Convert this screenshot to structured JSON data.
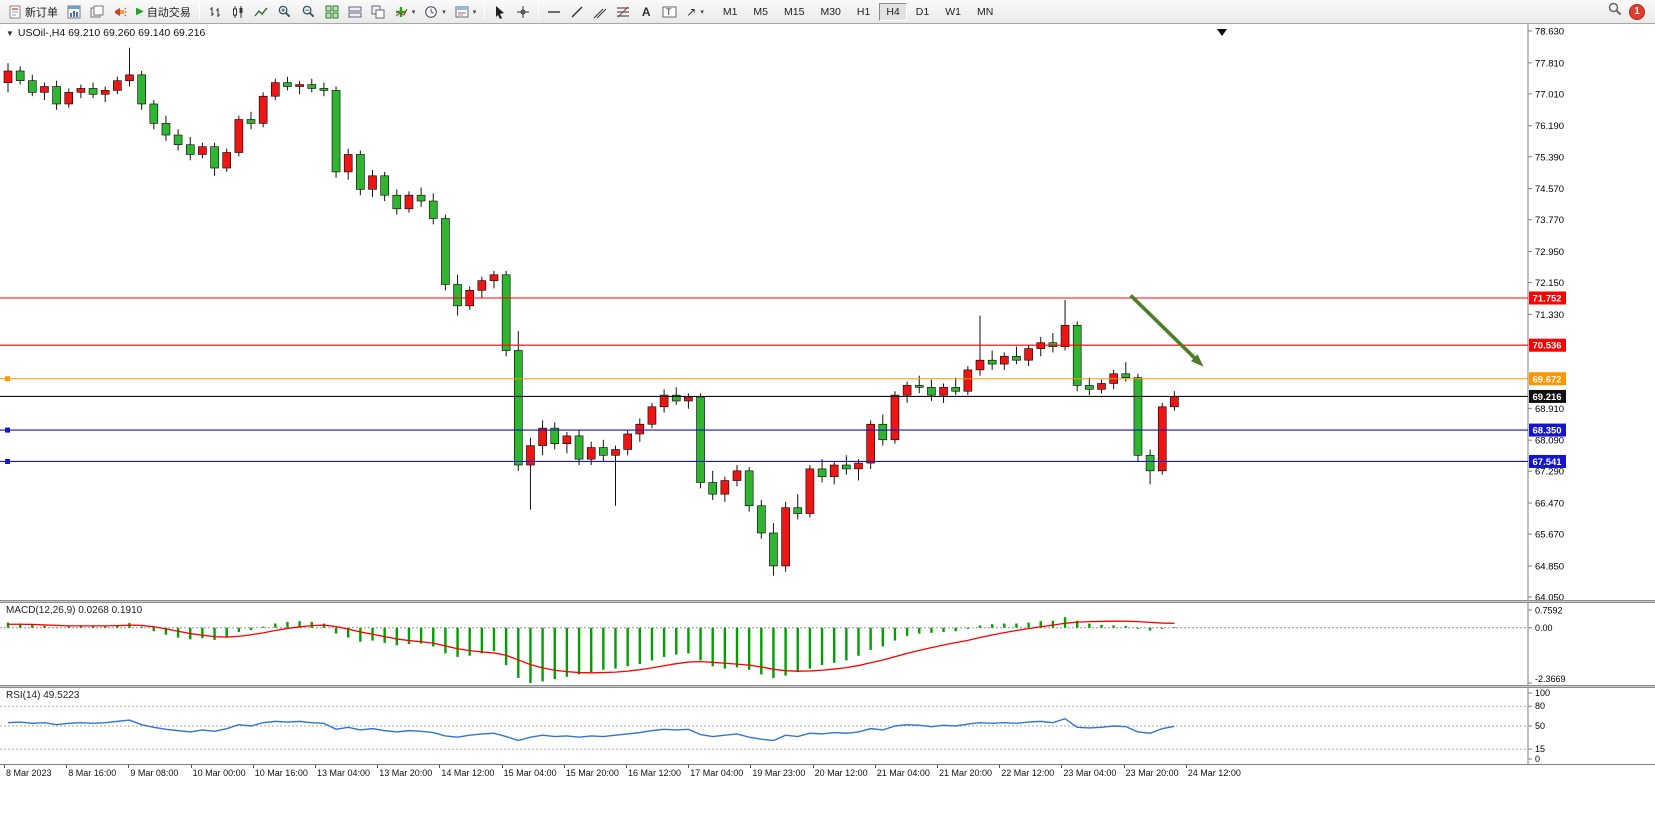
{
  "toolbar": {
    "new_order_label": "新订单",
    "autotrading_label": "自动交易",
    "timeframes": [
      "M1",
      "M5",
      "M15",
      "M30",
      "H1",
      "H4",
      "D1",
      "W1",
      "MN"
    ],
    "active_timeframe": "H4",
    "notification_count": "1",
    "text_tool_label": "A",
    "arrows_tool_glyph": "↗"
  },
  "chart_header": {
    "title": "USOil-,H4  69.210 69.260 69.140 69.216"
  },
  "macd_panel": {
    "label": "MACD(12,26,9) 0.0268 0.1910"
  },
  "rsi_panel": {
    "label": "RSI(14) 49.5223"
  },
  "chart_data": {
    "type": "candlestick",
    "symbol": "USOil-",
    "period": "H4",
    "ohlc_display": {
      "open": 69.21,
      "high": 69.26,
      "low": 69.14,
      "close": 69.216
    },
    "ylim": [
      64.05,
      78.63
    ],
    "colors": {
      "up": "#EE1515",
      "down": "#2FB52F",
      "wick": "#111111",
      "body_border": "#000000",
      "macd_hist": "#00A000",
      "macd_signal": "#FF0000",
      "rsi_line": "#2E75D4",
      "axis_line": "#808080",
      "arrow": "#4D7E2A",
      "bid": "#111111"
    },
    "price_axis": {
      "labels": [
        "78.630",
        "77.810",
        "77.010",
        "76.190",
        "75.390",
        "74.570",
        "73.770",
        "72.950",
        "72.150",
        "71.330",
        "68.910",
        "68.090",
        "67.290",
        "66.470",
        "65.670",
        "64.850",
        "64.050"
      ]
    },
    "hlines": [
      {
        "price": 71.752,
        "label": "71.752",
        "color": "#FF0000",
        "handle": false
      },
      {
        "price": 70.536,
        "label": "70.536",
        "color": "#FF0000",
        "handle": false
      },
      {
        "price": 69.672,
        "label": "69.672",
        "color": "#FF9500",
        "handle": true
      },
      {
        "price": 69.216,
        "label": "69.216",
        "color": "#111111",
        "handle": false
      },
      {
        "price": 68.35,
        "label": "68.350",
        "color": "#1414CC",
        "handle": true
      },
      {
        "price": 67.541,
        "label": "67.541",
        "color": "#1414CC",
        "handle": true
      }
    ],
    "arrow": {
      "from": {
        "index": 92.4,
        "price": 71.82
      },
      "to": {
        "index": 98.4,
        "price": 69.98
      }
    },
    "x_labels": [
      "8 Mar 2023",
      "8 Mar 16:00",
      "9 Mar 08:00",
      "10 Mar 00:00",
      "10 Mar 16:00",
      "13 Mar 04:00",
      "13 Mar 20:00",
      "14 Mar 12:00",
      "15 Mar 04:00",
      "15 Mar 20:00",
      "16 Mar 12:00",
      "17 Mar 04:00",
      "19 Mar 23:00",
      "20 Mar 12:00",
      "21 Mar 04:00",
      "21 Mar 20:00",
      "22 Mar 12:00",
      "23 Mar 04:00",
      "23 Mar 20:00",
      "24 Mar 12:00"
    ],
    "candles": [
      [
        77.3,
        77.8,
        77.05,
        77.6
      ],
      [
        77.6,
        77.72,
        77.25,
        77.35
      ],
      [
        77.35,
        77.5,
        76.95,
        77.05
      ],
      [
        77.05,
        77.3,
        76.85,
        77.2
      ],
      [
        77.2,
        77.35,
        76.6,
        76.75
      ],
      [
        76.75,
        77.15,
        76.65,
        77.05
      ],
      [
        77.05,
        77.25,
        76.9,
        77.15
      ],
      [
        77.15,
        77.3,
        76.9,
        77.0
      ],
      [
        77.0,
        77.2,
        76.8,
        77.1
      ],
      [
        77.1,
        77.45,
        77.0,
        77.35
      ],
      [
        77.35,
        78.2,
        77.2,
        77.5
      ],
      [
        77.5,
        77.6,
        76.6,
        76.75
      ],
      [
        76.75,
        76.85,
        76.1,
        76.25
      ],
      [
        76.25,
        76.45,
        75.8,
        75.95
      ],
      [
        75.95,
        76.1,
        75.55,
        75.7
      ],
      [
        75.7,
        75.9,
        75.3,
        75.45
      ],
      [
        75.45,
        75.75,
        75.35,
        75.65
      ],
      [
        75.65,
        75.75,
        74.9,
        75.1
      ],
      [
        75.1,
        75.6,
        75.0,
        75.5
      ],
      [
        75.5,
        76.45,
        75.4,
        76.35
      ],
      [
        76.35,
        76.55,
        76.1,
        76.25
      ],
      [
        76.25,
        77.05,
        76.15,
        76.95
      ],
      [
        76.95,
        77.4,
        76.85,
        77.3
      ],
      [
        77.3,
        77.45,
        77.1,
        77.2
      ],
      [
        77.2,
        77.35,
        77.0,
        77.25
      ],
      [
        77.25,
        77.4,
        77.05,
        77.15
      ],
      [
        77.15,
        77.3,
        76.95,
        77.1
      ],
      [
        77.1,
        77.2,
        74.85,
        75.0
      ],
      [
        75.0,
        75.6,
        74.8,
        75.45
      ],
      [
        75.45,
        75.55,
        74.4,
        74.55
      ],
      [
        74.55,
        75.05,
        74.35,
        74.9
      ],
      [
        74.9,
        75.0,
        74.25,
        74.4
      ],
      [
        74.4,
        74.55,
        73.9,
        74.05
      ],
      [
        74.05,
        74.5,
        73.95,
        74.4
      ],
      [
        74.4,
        74.6,
        74.1,
        74.25
      ],
      [
        74.25,
        74.45,
        73.65,
        73.8
      ],
      [
        73.8,
        73.9,
        71.95,
        72.1
      ],
      [
        72.1,
        72.35,
        71.3,
        71.55
      ],
      [
        71.55,
        72.05,
        71.45,
        71.95
      ],
      [
        71.95,
        72.3,
        71.75,
        72.2
      ],
      [
        72.2,
        72.45,
        72.0,
        72.35
      ],
      [
        72.35,
        72.45,
        70.25,
        70.4
      ],
      [
        70.4,
        70.9,
        67.3,
        67.45
      ],
      [
        67.45,
        68.15,
        66.3,
        67.95
      ],
      [
        67.95,
        68.6,
        67.7,
        68.4
      ],
      [
        68.4,
        68.55,
        67.85,
        68.0
      ],
      [
        68.0,
        68.3,
        67.75,
        68.2
      ],
      [
        68.2,
        68.35,
        67.45,
        67.6
      ],
      [
        67.6,
        68.05,
        67.45,
        67.9
      ],
      [
        67.9,
        68.1,
        67.55,
        67.7
      ],
      [
        67.7,
        67.95,
        66.4,
        67.85
      ],
      [
        67.85,
        68.35,
        67.7,
        68.25
      ],
      [
        68.25,
        68.65,
        68.05,
        68.5
      ],
      [
        68.5,
        69.05,
        68.4,
        68.95
      ],
      [
        68.95,
        69.4,
        68.8,
        69.25
      ],
      [
        69.25,
        69.45,
        69.0,
        69.1
      ],
      [
        69.1,
        69.3,
        68.9,
        69.2
      ],
      [
        69.2,
        69.3,
        66.85,
        67.0
      ],
      [
        67.0,
        67.3,
        66.55,
        66.7
      ],
      [
        66.7,
        67.15,
        66.5,
        67.05
      ],
      [
        67.05,
        67.45,
        66.9,
        67.3
      ],
      [
        67.3,
        67.4,
        66.25,
        66.4
      ],
      [
        66.4,
        66.55,
        65.55,
        65.7
      ],
      [
        65.7,
        65.95,
        64.6,
        64.85
      ],
      [
        64.85,
        66.5,
        64.7,
        66.35
      ],
      [
        66.35,
        66.7,
        66.05,
        66.2
      ],
      [
        66.2,
        67.45,
        66.1,
        67.35
      ],
      [
        67.35,
        67.6,
        67.0,
        67.15
      ],
      [
        67.15,
        67.55,
        66.95,
        67.45
      ],
      [
        67.45,
        67.7,
        67.2,
        67.35
      ],
      [
        67.35,
        67.6,
        67.05,
        67.5
      ],
      [
        67.5,
        68.6,
        67.35,
        68.5
      ],
      [
        68.5,
        68.75,
        67.95,
        68.1
      ],
      [
        68.1,
        69.35,
        68.0,
        69.25
      ],
      [
        69.25,
        69.6,
        69.05,
        69.5
      ],
      [
        69.5,
        69.75,
        69.3,
        69.45
      ],
      [
        69.45,
        69.65,
        69.1,
        69.25
      ],
      [
        69.25,
        69.55,
        69.05,
        69.45
      ],
      [
        69.45,
        69.7,
        69.25,
        69.35
      ],
      [
        69.35,
        70.0,
        69.25,
        69.9
      ],
      [
        69.9,
        71.3,
        69.75,
        70.15
      ],
      [
        70.15,
        70.4,
        69.9,
        70.05
      ],
      [
        70.05,
        70.35,
        69.9,
        70.25
      ],
      [
        70.25,
        70.5,
        70.05,
        70.15
      ],
      [
        70.15,
        70.55,
        70.0,
        70.45
      ],
      [
        70.45,
        70.75,
        70.25,
        70.6
      ],
      [
        70.6,
        70.85,
        70.35,
        70.5
      ],
      [
        70.5,
        71.7,
        70.4,
        71.05
      ],
      [
        71.05,
        71.15,
        69.35,
        69.5
      ],
      [
        69.5,
        69.7,
        69.25,
        69.4
      ],
      [
        69.4,
        69.65,
        69.3,
        69.55
      ],
      [
        69.55,
        69.9,
        69.4,
        69.8
      ],
      [
        69.8,
        70.1,
        69.6,
        69.7
      ],
      [
        69.7,
        69.8,
        67.55,
        67.7
      ],
      [
        67.7,
        67.85,
        66.95,
        67.3
      ],
      [
        67.3,
        69.05,
        67.2,
        68.95
      ],
      [
        68.95,
        69.35,
        68.85,
        69.216
      ]
    ],
    "macd": {
      "name": "MACD(12,26,9)",
      "main_value": 0.0268,
      "signal_value": 0.191,
      "axis": [
        "0.7592",
        "0.00",
        "-2.3669"
      ],
      "axis_values": [
        0.7592,
        0.0,
        -2.3669
      ],
      "histogram": [
        0.22,
        0.18,
        0.12,
        0.08,
        0.02,
        0.05,
        0.1,
        0.08,
        0.06,
        0.12,
        0.2,
        0.05,
        -0.15,
        -0.3,
        -0.42,
        -0.5,
        -0.45,
        -0.52,
        -0.4,
        -0.18,
        -0.1,
        0.05,
        0.18,
        0.25,
        0.28,
        0.25,
        0.18,
        -0.25,
        -0.42,
        -0.6,
        -0.55,
        -0.65,
        -0.75,
        -0.7,
        -0.68,
        -0.8,
        -1.1,
        -1.25,
        -1.2,
        -1.1,
        -1.0,
        -1.6,
        -2.15,
        -2.37,
        -2.3,
        -2.2,
        -2.1,
        -2.0,
        -1.9,
        -1.8,
        -1.75,
        -1.65,
        -1.55,
        -1.4,
        -1.25,
        -1.15,
        -1.1,
        -1.4,
        -1.65,
        -1.75,
        -1.7,
        -1.8,
        -2.0,
        -2.15,
        -2.05,
        -1.9,
        -1.75,
        -1.6,
        -1.5,
        -1.4,
        -1.2,
        -0.95,
        -0.8,
        -0.55,
        -0.35,
        -0.25,
        -0.22,
        -0.18,
        -0.15,
        -0.05,
        0.1,
        0.15,
        0.18,
        0.18,
        0.22,
        0.28,
        0.3,
        0.45,
        0.3,
        0.18,
        0.12,
        0.1,
        0.08,
        -0.05,
        -0.12,
        -0.05,
        0.03
      ],
      "signal": [
        0.15,
        0.15,
        0.14,
        0.12,
        0.1,
        0.08,
        0.08,
        0.08,
        0.08,
        0.09,
        0.11,
        0.1,
        0.04,
        -0.05,
        -0.15,
        -0.25,
        -0.32,
        -0.38,
        -0.4,
        -0.37,
        -0.3,
        -0.22,
        -0.12,
        -0.03,
        0.04,
        0.09,
        0.11,
        0.05,
        -0.06,
        -0.18,
        -0.28,
        -0.38,
        -0.48,
        -0.55,
        -0.6,
        -0.66,
        -0.78,
        -0.9,
        -0.98,
        -1.04,
        -1.08,
        -1.18,
        -1.38,
        -1.58,
        -1.72,
        -1.82,
        -1.88,
        -1.92,
        -1.93,
        -1.92,
        -1.9,
        -1.86,
        -1.8,
        -1.72,
        -1.63,
        -1.54,
        -1.47,
        -1.45,
        -1.48,
        -1.52,
        -1.56,
        -1.6,
        -1.68,
        -1.78,
        -1.84,
        -1.86,
        -1.85,
        -1.82,
        -1.77,
        -1.71,
        -1.62,
        -1.5,
        -1.38,
        -1.24,
        -1.1,
        -0.97,
        -0.85,
        -0.74,
        -0.64,
        -0.54,
        -0.42,
        -0.31,
        -0.21,
        -0.12,
        -0.04,
        0.04,
        0.11,
        0.19,
        0.24,
        0.26,
        0.27,
        0.28,
        0.28,
        0.26,
        0.23,
        0.2,
        0.19
      ]
    },
    "rsi": {
      "name": "RSI(14)",
      "value": 49.5223,
      "axis": [
        "100",
        "80",
        "50",
        "15",
        "0"
      ],
      "levels": [
        80,
        50,
        15
      ],
      "values": [
        55,
        56,
        54,
        55,
        52,
        54,
        55,
        54,
        55,
        57,
        59,
        52,
        48,
        45,
        43,
        41,
        44,
        42,
        46,
        52,
        50,
        55,
        57,
        56,
        57,
        55,
        54,
        45,
        48,
        44,
        46,
        43,
        41,
        43,
        42,
        40,
        35,
        33,
        36,
        38,
        39,
        34,
        28,
        33,
        36,
        34,
        35,
        33,
        35,
        34,
        36,
        38,
        40,
        43,
        45,
        44,
        45,
        37,
        34,
        36,
        38,
        33,
        30,
        28,
        36,
        34,
        39,
        38,
        40,
        39,
        41,
        46,
        44,
        50,
        52,
        51,
        49,
        51,
        50,
        53,
        55,
        54,
        55,
        54,
        56,
        57,
        55,
        61,
        48,
        47,
        48,
        50,
        49,
        41,
        39,
        46,
        49.52
      ]
    }
  }
}
